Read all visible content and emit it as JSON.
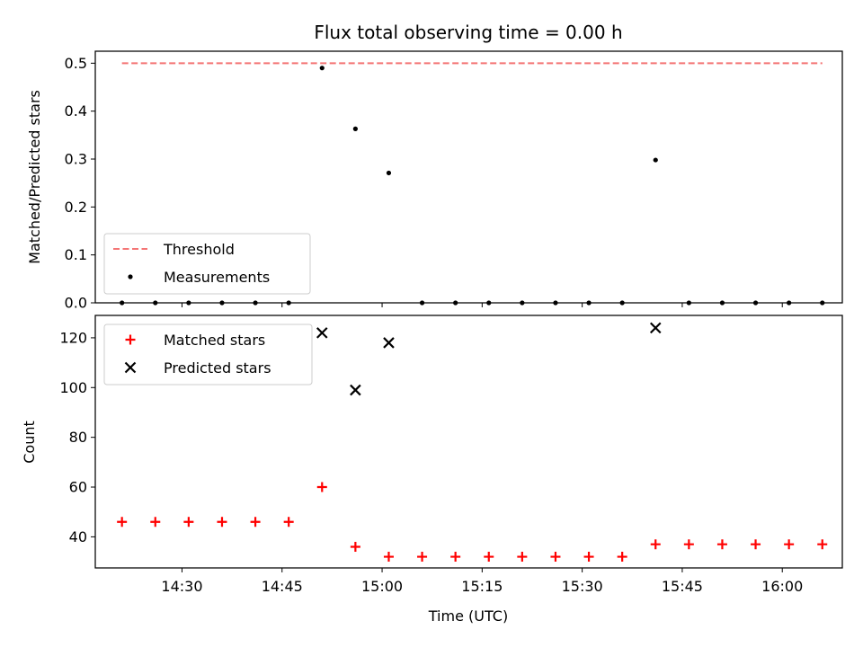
{
  "chart_data": [
    {
      "type": "scatter",
      "title": "Flux total observing time = 0.00 h",
      "xlabel": "",
      "ylabel": "Matched/Predicted stars",
      "ylim": [
        0,
        0.525
      ],
      "yticks": [
        0.0,
        0.1,
        0.2,
        0.3,
        0.4,
        0.5
      ],
      "ytick_labels": [
        "0.0",
        "0.1",
        "0.2",
        "0.3",
        "0.4",
        "0.5"
      ],
      "legend_position": "lower-left",
      "grid": false,
      "series": [
        {
          "name": "Threshold",
          "kind": "line",
          "style": "dashed",
          "color": "#f47575",
          "x": [
            "14:21",
            "16:06"
          ],
          "y": [
            0.5,
            0.5
          ]
        },
        {
          "name": "Measurements",
          "kind": "scatter",
          "marker": "dot",
          "color": "#000000",
          "x": [
            "14:21",
            "14:26",
            "14:31",
            "14:36",
            "14:41",
            "14:46",
            "14:51",
            "14:56",
            "15:01",
            "15:06",
            "15:11",
            "15:16",
            "15:21",
            "15:26",
            "15:31",
            "15:36",
            "15:41",
            "15:46",
            "15:51",
            "15:56",
            "16:01",
            "16:06"
          ],
          "y": [
            0.0,
            0.0,
            0.0,
            0.0,
            0.0,
            0.0,
            0.49,
            0.363,
            0.271,
            0.0,
            0.0,
            0.0,
            0.0,
            0.0,
            0.0,
            0.0,
            0.298,
            0.0,
            0.0,
            0.0,
            0.0,
            0.0
          ]
        }
      ]
    },
    {
      "type": "scatter",
      "xlabel": "Time (UTC)",
      "ylabel": "Count",
      "xlim": [
        "14:17",
        "16:09"
      ],
      "xticks": [
        "14:30",
        "14:45",
        "15:00",
        "15:15",
        "15:30",
        "15:45",
        "16:00"
      ],
      "ylim": [
        27.5,
        129
      ],
      "yticks": [
        40,
        60,
        80,
        100,
        120
      ],
      "ytick_labels": [
        "40",
        "60",
        "80",
        "100",
        "120"
      ],
      "legend_position": "upper-left",
      "grid": false,
      "series": [
        {
          "name": "Matched stars",
          "kind": "scatter",
          "marker": "plus",
          "color": "#ff0000",
          "x": [
            "14:21",
            "14:26",
            "14:31",
            "14:36",
            "14:41",
            "14:46",
            "14:51",
            "14:56",
            "15:01",
            "15:06",
            "15:11",
            "15:16",
            "15:21",
            "15:26",
            "15:31",
            "15:36",
            "15:41",
            "15:46",
            "15:51",
            "15:56",
            "16:01",
            "16:06"
          ],
          "y": [
            46,
            46,
            46,
            46,
            46,
            46,
            60,
            36,
            32,
            32,
            32,
            32,
            32,
            32,
            32,
            32,
            37,
            37,
            37,
            37,
            37,
            37
          ]
        },
        {
          "name": "Predicted stars",
          "kind": "scatter",
          "marker": "x",
          "color": "#000000",
          "x": [
            "14:51",
            "14:56",
            "15:01",
            "15:41"
          ],
          "y": [
            122,
            99,
            118,
            124
          ]
        }
      ]
    }
  ]
}
